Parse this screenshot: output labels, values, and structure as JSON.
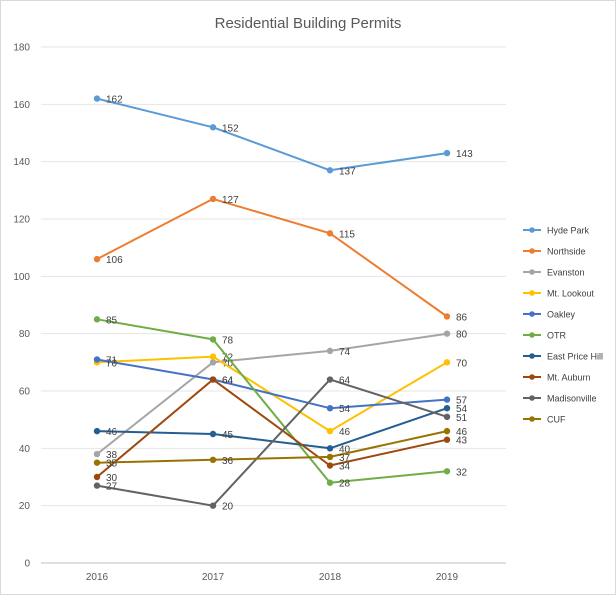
{
  "chart_data": {
    "type": "line",
    "title": "Residential Building Permits",
    "xlabel": "",
    "ylabel": "",
    "categories": [
      "2016",
      "2017",
      "2018",
      "2019"
    ],
    "ylim": [
      0,
      180
    ],
    "yticks": [
      0,
      20,
      40,
      60,
      80,
      100,
      120,
      140,
      160,
      180
    ],
    "grid": true,
    "legend_position": "right",
    "series": [
      {
        "name": "Hyde Park",
        "values": [
          162,
          152,
          137,
          143
        ],
        "color": "#5b9bd5"
      },
      {
        "name": "Northside",
        "values": [
          106,
          127,
          115,
          86
        ],
        "color": "#ed7d31"
      },
      {
        "name": "Evanston",
        "values": [
          38,
          70,
          74,
          80
        ],
        "color": "#a5a5a5"
      },
      {
        "name": "Mt. Lookout",
        "values": [
          70,
          72,
          46,
          70
        ],
        "color": "#ffc000"
      },
      {
        "name": "Oakley",
        "values": [
          71,
          64,
          54,
          57
        ],
        "color": "#4472c4"
      },
      {
        "name": "OTR",
        "values": [
          85,
          78,
          28,
          32
        ],
        "color": "#70ad47"
      },
      {
        "name": "East Price Hill",
        "values": [
          46,
          45,
          40,
          54
        ],
        "color": "#255e91"
      },
      {
        "name": "Mt. Auburn",
        "values": [
          30,
          64,
          34,
          43
        ],
        "color": "#9e480e"
      },
      {
        "name": "Madisonville",
        "values": [
          27,
          20,
          64,
          51
        ],
        "color": "#636363"
      },
      {
        "name": "CUF",
        "values": [
          35,
          36,
          37,
          46
        ],
        "color": "#997300"
      }
    ]
  }
}
